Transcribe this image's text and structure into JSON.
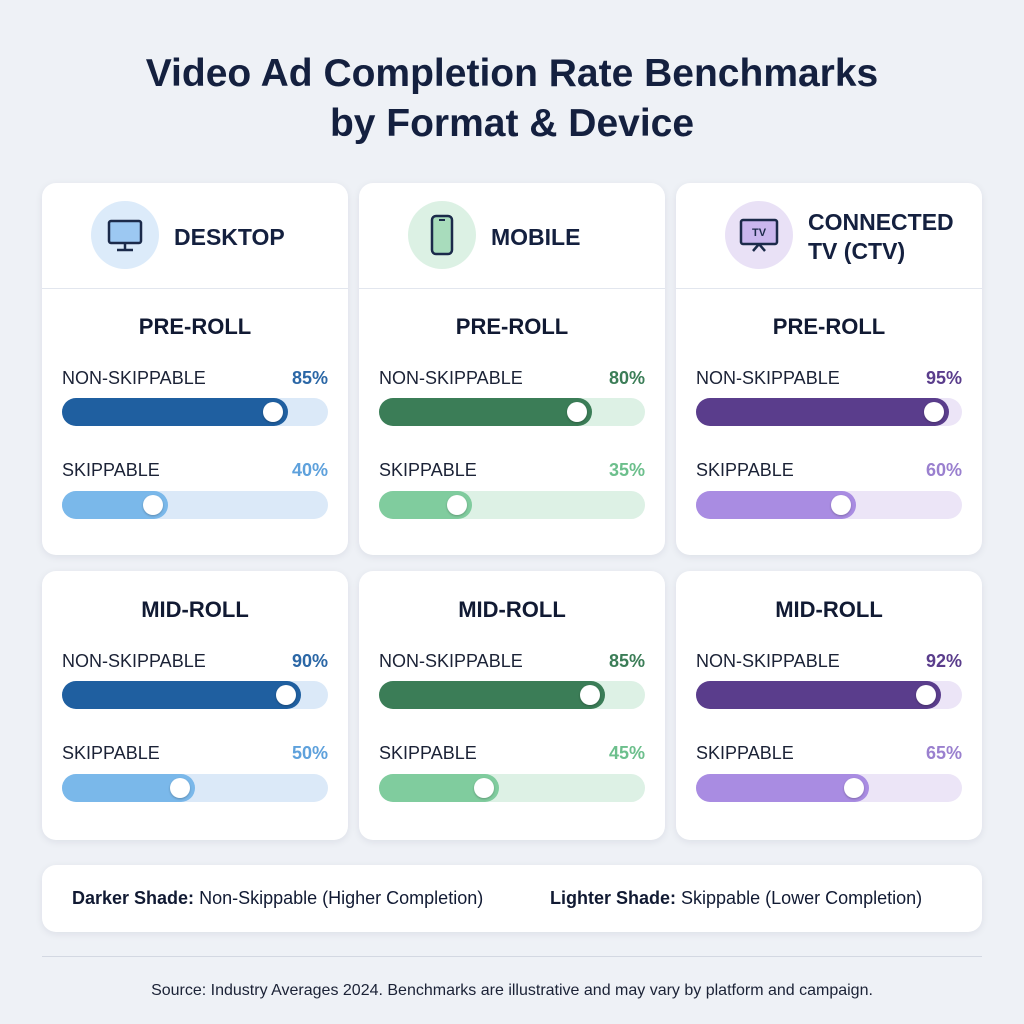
{
  "title_lines": [
    "Video Ad Completion Rate Benchmarks",
    "by Format & Device"
  ],
  "xlim": [
    0,
    100
  ],
  "panels": [
    {
      "device": "DESKTOP",
      "dark": "#1f5fa0",
      "light": "#7ab8ea",
      "track": "#dbe9f8",
      "dark_text": "#2b67a6",
      "light_text": "#5ea1dc",
      "icon_bg": "#dcebfa",
      "sections": [
        {
          "format": "PRE-ROLL",
          "rows": [
            {
              "label": "NON-SKIPPABLE",
              "value": 85,
              "value_label": "85%"
            },
            {
              "label": "SKIPPABLE",
              "value": 40,
              "value_label": "40%"
            }
          ]
        },
        {
          "format": "MID-ROLL",
          "rows": [
            {
              "label": "NON-SKIPPABLE",
              "value": 90,
              "value_label": "90%"
            },
            {
              "label": "SKIPPABLE",
              "value": 50,
              "value_label": "50%"
            }
          ]
        }
      ]
    },
    {
      "device": "MOBILE",
      "dark": "#3b7d57",
      "light": "#80cc9e",
      "track": "#ddf1e5",
      "dark_text": "#3b7d57",
      "light_text": "#6cbf8c",
      "icon_bg": "#dcf1e4",
      "sections": [
        {
          "format": "PRE-ROLL",
          "rows": [
            {
              "label": "NON-SKIPPABLE",
              "value": 80,
              "value_label": "80%"
            },
            {
              "label": "SKIPPABLE",
              "value": 35,
              "value_label": "35%"
            }
          ]
        },
        {
          "format": "MID-ROLL",
          "rows": [
            {
              "label": "NON-SKIPPABLE",
              "value": 85,
              "value_label": "85%"
            },
            {
              "label": "SKIPPABLE",
              "value": 45,
              "value_label": "45%"
            }
          ]
        }
      ]
    },
    {
      "device": "CONNECTED TV (CTV)",
      "icon_text": "TV",
      "dark": "#5a3d8c",
      "light": "#a98ce2",
      "track": "#ece5f7",
      "dark_text": "#5a3d8c",
      "light_text": "#9a80cf",
      "icon_bg": "#e9e1f6",
      "sections": [
        {
          "format": "PRE-ROLL",
          "rows": [
            {
              "label": "NON-SKIPPABLE",
              "value": 95,
              "value_label": "95%"
            },
            {
              "label": "SKIPPABLE",
              "value": 60,
              "value_label": "60%"
            }
          ]
        },
        {
          "format": "MID-ROLL",
          "rows": [
            {
              "label": "NON-SKIPPABLE",
              "value": 92,
              "value_label": "92%"
            },
            {
              "label": "SKIPPABLE",
              "value": 65,
              "value_label": "65%"
            }
          ]
        }
      ]
    }
  ],
  "legend": {
    "dark_key": "Darker Shade:",
    "dark_text": "Non-Skippable (Higher Completion)",
    "light_key": "Lighter Shade:",
    "light_text": "Skippable (Lower Completion)"
  },
  "source": "Source: Industry Averages 2024. Benchmarks are illustrative and may vary by platform and campaign."
}
